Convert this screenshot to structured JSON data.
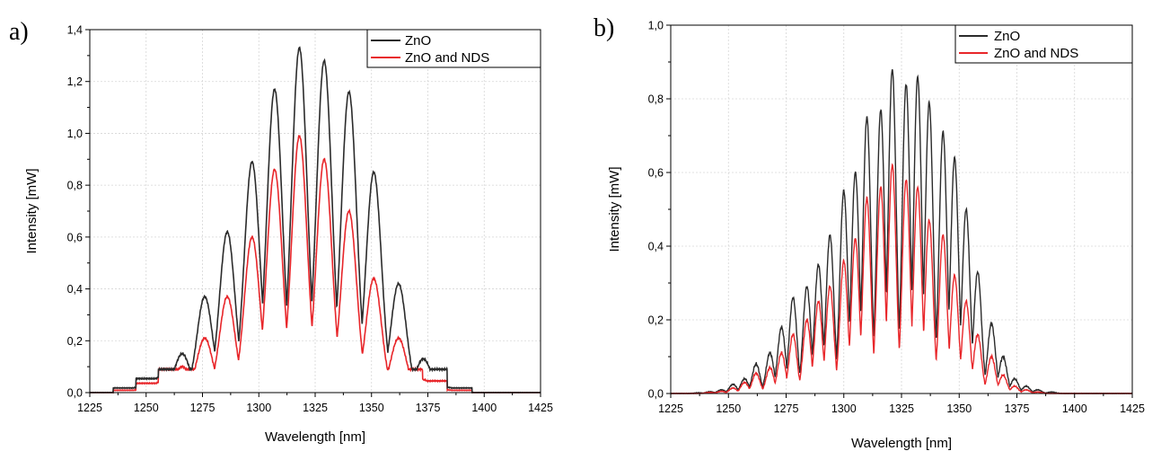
{
  "colors": {
    "ZnO": "#2b2b2b",
    "ZnO and NDS": "#e8262a"
  },
  "chart_data": [
    {
      "panel_label": "a)",
      "type": "line",
      "xlabel": "Wavelength [nm]",
      "ylabel": "Intensity [mW]",
      "xlim": [
        1225,
        1425
      ],
      "ylim": [
        0,
        1.4
      ],
      "x_ticks": [
        "1225",
        "1250",
        "1275",
        "1300",
        "1325",
        "1350",
        "1375",
        "1400",
        "1425"
      ],
      "y_ticks": [
        "0,0",
        "0,2",
        "0,4",
        "0,6",
        "0,8",
        "1,0",
        "1,2",
        "1,4"
      ],
      "grid": true,
      "legend_position": "top-right",
      "mode_spacing_nm": 10.6,
      "valley_floor": 0.1,
      "series": [
        {
          "name": "ZnO",
          "color": "#2b2b2b",
          "peaks": [
            {
              "x": 1246,
              "y": 0.02
            },
            {
              "x": 1256,
              "y": 0.06
            },
            {
              "x": 1266,
              "y": 0.15
            },
            {
              "x": 1276,
              "y": 0.37
            },
            {
              "x": 1286,
              "y": 0.62
            },
            {
              "x": 1297,
              "y": 0.89
            },
            {
              "x": 1307,
              "y": 1.17
            },
            {
              "x": 1318,
              "y": 1.33
            },
            {
              "x": 1329,
              "y": 1.28
            },
            {
              "x": 1340,
              "y": 1.16
            },
            {
              "x": 1351,
              "y": 0.85
            },
            {
              "x": 1362,
              "y": 0.42
            },
            {
              "x": 1373,
              "y": 0.13
            },
            {
              "x": 1384,
              "y": 0.02
            }
          ]
        },
        {
          "name": "ZnO and NDS",
          "color": "#e8262a",
          "peaks": [
            {
              "x": 1246,
              "y": 0.01
            },
            {
              "x": 1256,
              "y": 0.04
            },
            {
              "x": 1266,
              "y": 0.1
            },
            {
              "x": 1276,
              "y": 0.21
            },
            {
              "x": 1286,
              "y": 0.37
            },
            {
              "x": 1297,
              "y": 0.6
            },
            {
              "x": 1307,
              "y": 0.86
            },
            {
              "x": 1318,
              "y": 0.99
            },
            {
              "x": 1329,
              "y": 0.9
            },
            {
              "x": 1340,
              "y": 0.7
            },
            {
              "x": 1351,
              "y": 0.44
            },
            {
              "x": 1362,
              "y": 0.21
            },
            {
              "x": 1373,
              "y": 0.05
            },
            {
              "x": 1384,
              "y": 0.01
            }
          ]
        }
      ]
    },
    {
      "panel_label": "b)",
      "type": "line",
      "xlabel": "Wavelength [nm]",
      "ylabel": "Intensity [mW]",
      "xlim": [
        1225,
        1425
      ],
      "ylim": [
        0,
        1.0
      ],
      "x_ticks": [
        "1225",
        "1250",
        "1275",
        "1300",
        "1325",
        "1350",
        "1375",
        "1400",
        "1425"
      ],
      "y_ticks": [
        "0,0",
        "0,2",
        "0,4",
        "0,6",
        "0,8",
        "1,0"
      ],
      "grid": true,
      "legend_position": "top-right",
      "mode_spacing_nm": 5.2,
      "valley_floor": 0.0,
      "series": [
        {
          "name": "ZnO",
          "color": "#2b2b2b",
          "peaks": [
            {
              "x": 1237,
              "y": 0.002
            },
            {
              "x": 1242,
              "y": 0.005
            },
            {
              "x": 1247,
              "y": 0.01
            },
            {
              "x": 1252,
              "y": 0.025
            },
            {
              "x": 1257,
              "y": 0.04
            },
            {
              "x": 1262,
              "y": 0.08
            },
            {
              "x": 1268,
              "y": 0.11
            },
            {
              "x": 1273,
              "y": 0.18
            },
            {
              "x": 1278,
              "y": 0.26
            },
            {
              "x": 1284,
              "y": 0.29
            },
            {
              "x": 1289,
              "y": 0.35
            },
            {
              "x": 1294,
              "y": 0.43
            },
            {
              "x": 1300,
              "y": 0.55
            },
            {
              "x": 1305,
              "y": 0.6
            },
            {
              "x": 1310,
              "y": 0.75
            },
            {
              "x": 1316,
              "y": 0.77
            },
            {
              "x": 1321,
              "y": 0.88
            },
            {
              "x": 1327,
              "y": 0.84
            },
            {
              "x": 1332,
              "y": 0.86
            },
            {
              "x": 1337,
              "y": 0.79
            },
            {
              "x": 1343,
              "y": 0.71
            },
            {
              "x": 1348,
              "y": 0.64
            },
            {
              "x": 1353,
              "y": 0.5
            },
            {
              "x": 1358,
              "y": 0.33
            },
            {
              "x": 1364,
              "y": 0.19
            },
            {
              "x": 1369,
              "y": 0.1
            },
            {
              "x": 1374,
              "y": 0.04
            },
            {
              "x": 1379,
              "y": 0.02
            },
            {
              "x": 1384,
              "y": 0.01
            },
            {
              "x": 1390,
              "y": 0.004
            }
          ]
        },
        {
          "name": "ZnO and NDS",
          "color": "#e8262a",
          "peaks": [
            {
              "x": 1242,
              "y": 0.003
            },
            {
              "x": 1247,
              "y": 0.006
            },
            {
              "x": 1252,
              "y": 0.015
            },
            {
              "x": 1257,
              "y": 0.03
            },
            {
              "x": 1262,
              "y": 0.055
            },
            {
              "x": 1268,
              "y": 0.07
            },
            {
              "x": 1273,
              "y": 0.11
            },
            {
              "x": 1278,
              "y": 0.16
            },
            {
              "x": 1284,
              "y": 0.2
            },
            {
              "x": 1289,
              "y": 0.25
            },
            {
              "x": 1294,
              "y": 0.29
            },
            {
              "x": 1300,
              "y": 0.36
            },
            {
              "x": 1305,
              "y": 0.42
            },
            {
              "x": 1310,
              "y": 0.53
            },
            {
              "x": 1316,
              "y": 0.56
            },
            {
              "x": 1321,
              "y": 0.62
            },
            {
              "x": 1327,
              "y": 0.58
            },
            {
              "x": 1332,
              "y": 0.56
            },
            {
              "x": 1337,
              "y": 0.47
            },
            {
              "x": 1343,
              "y": 0.43
            },
            {
              "x": 1348,
              "y": 0.32
            },
            {
              "x": 1353,
              "y": 0.25
            },
            {
              "x": 1358,
              "y": 0.16
            },
            {
              "x": 1364,
              "y": 0.1
            },
            {
              "x": 1369,
              "y": 0.05
            },
            {
              "x": 1374,
              "y": 0.02
            },
            {
              "x": 1379,
              "y": 0.01
            },
            {
              "x": 1384,
              "y": 0.004
            }
          ]
        }
      ]
    }
  ]
}
